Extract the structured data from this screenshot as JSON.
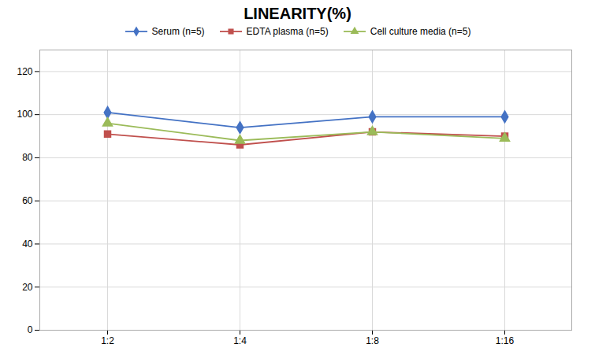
{
  "chart_data": {
    "type": "line",
    "title": "LINEARITY(%)",
    "categories": [
      "1:2",
      "1:4",
      "1:8",
      "1:16"
    ],
    "series": [
      {
        "name": "Serum (n=5)",
        "color": "#4472C4",
        "marker": "diamond",
        "values": [
          101,
          94,
          99,
          99
        ]
      },
      {
        "name": "EDTA plasma (n=5)",
        "color": "#C0504D",
        "marker": "square",
        "values": [
          91,
          86,
          92,
          90
        ]
      },
      {
        "name": "Cell culture media (n=5)",
        "color": "#9BBB59",
        "marker": "triangle",
        "values": [
          96,
          88,
          92,
          89
        ]
      }
    ],
    "ylim": [
      0,
      130
    ],
    "yticks": [
      0,
      20,
      40,
      60,
      80,
      100,
      120
    ],
    "grid": true,
    "legend": "top"
  }
}
